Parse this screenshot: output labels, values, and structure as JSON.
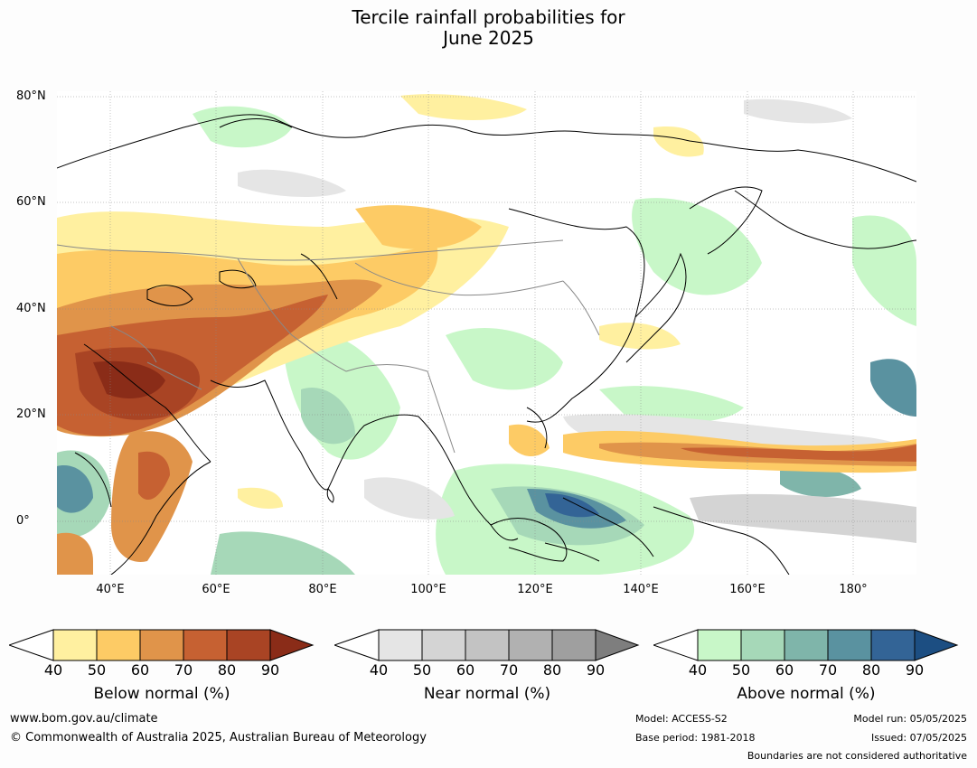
{
  "title": {
    "line1": "Tercile rainfall probabilities for",
    "line2": "June 2025"
  },
  "map": {
    "lat_labels": [
      "80°N",
      "60°N",
      "40°N",
      "20°N",
      "0°"
    ],
    "lon_labels": [
      "40°E",
      "60°E",
      "80°E",
      "100°E",
      "120°E",
      "140°E",
      "160°E",
      "180°"
    ],
    "lat_range": [
      -10,
      82
    ],
    "lon_range": [
      30,
      192
    ]
  },
  "colorbars": [
    {
      "label": "Below normal (%)",
      "ticks": [
        "40",
        "50",
        "60",
        "70",
        "80",
        "90"
      ],
      "colors": [
        "#fff0a0",
        "#fdcb65",
        "#e0944a",
        "#c66132",
        "#a94424",
        "#8a2c18"
      ]
    },
    {
      "label": "Near normal (%)",
      "ticks": [
        "40",
        "50",
        "60",
        "70",
        "80",
        "90"
      ],
      "colors": [
        "#e5e5e5",
        "#d4d4d4",
        "#c3c3c3",
        "#b1b1b1",
        "#9f9f9f",
        "#7e7e7e"
      ]
    },
    {
      "label": "Above normal (%)",
      "ticks": [
        "40",
        "50",
        "60",
        "70",
        "80",
        "90"
      ],
      "colors": [
        "#c8f7c8",
        "#a6d8b8",
        "#7fb5aa",
        "#5a92a0",
        "#336496",
        "#1c4e82"
      ]
    }
  ],
  "footer": {
    "website": "www.bom.gov.au/climate",
    "copyright": "© Commonwealth of Australia 2025, Australian Bureau of Meteorology",
    "model": "Model: ACCESS-S2",
    "base_period": "Base period: 1981-2018",
    "model_run": "Model run: 05/05/2025",
    "issued": "Issued: 07/05/2025",
    "disclaimer": "Boundaries are not considered authoritative"
  }
}
